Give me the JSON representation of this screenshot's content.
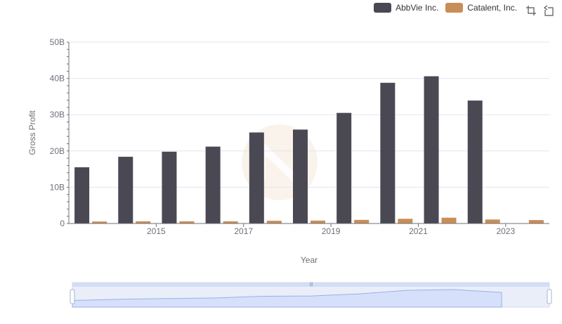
{
  "legend": {
    "items": [
      {
        "label": "AbbVie Inc.",
        "color": "#4a4953"
      },
      {
        "label": "Catalent, Inc.",
        "color": "#c98e58"
      }
    ]
  },
  "toolbox": {
    "icons": [
      "zoom-icon",
      "restore-icon"
    ]
  },
  "chart_data": {
    "type": "bar",
    "x": [
      2014,
      2015,
      2016,
      2017,
      2018,
      2019,
      2020,
      2021,
      2022,
      2023,
      2024
    ],
    "xticks": [
      "2015",
      "2017",
      "2019",
      "2021",
      "2023"
    ],
    "yticks": [
      "0",
      "10B",
      "20B",
      "30B",
      "40B",
      "50B"
    ],
    "ylim": [
      0,
      50
    ],
    "ylabel": "Gross Profit",
    "xlabel": "Year",
    "series": [
      {
        "name": "AbbVie Inc.",
        "color": "#4a4953",
        "values": [
          15.5,
          18.4,
          19.8,
          21.2,
          25.1,
          25.9,
          30.5,
          38.8,
          40.6,
          33.9,
          null
        ]
      },
      {
        "name": "Catalent, Inc.",
        "color": "#c98e58",
        "values": [
          0.55,
          0.6,
          0.6,
          0.6,
          0.75,
          0.8,
          1.0,
          1.3,
          1.6,
          1.1,
          0.95
        ]
      }
    ]
  }
}
